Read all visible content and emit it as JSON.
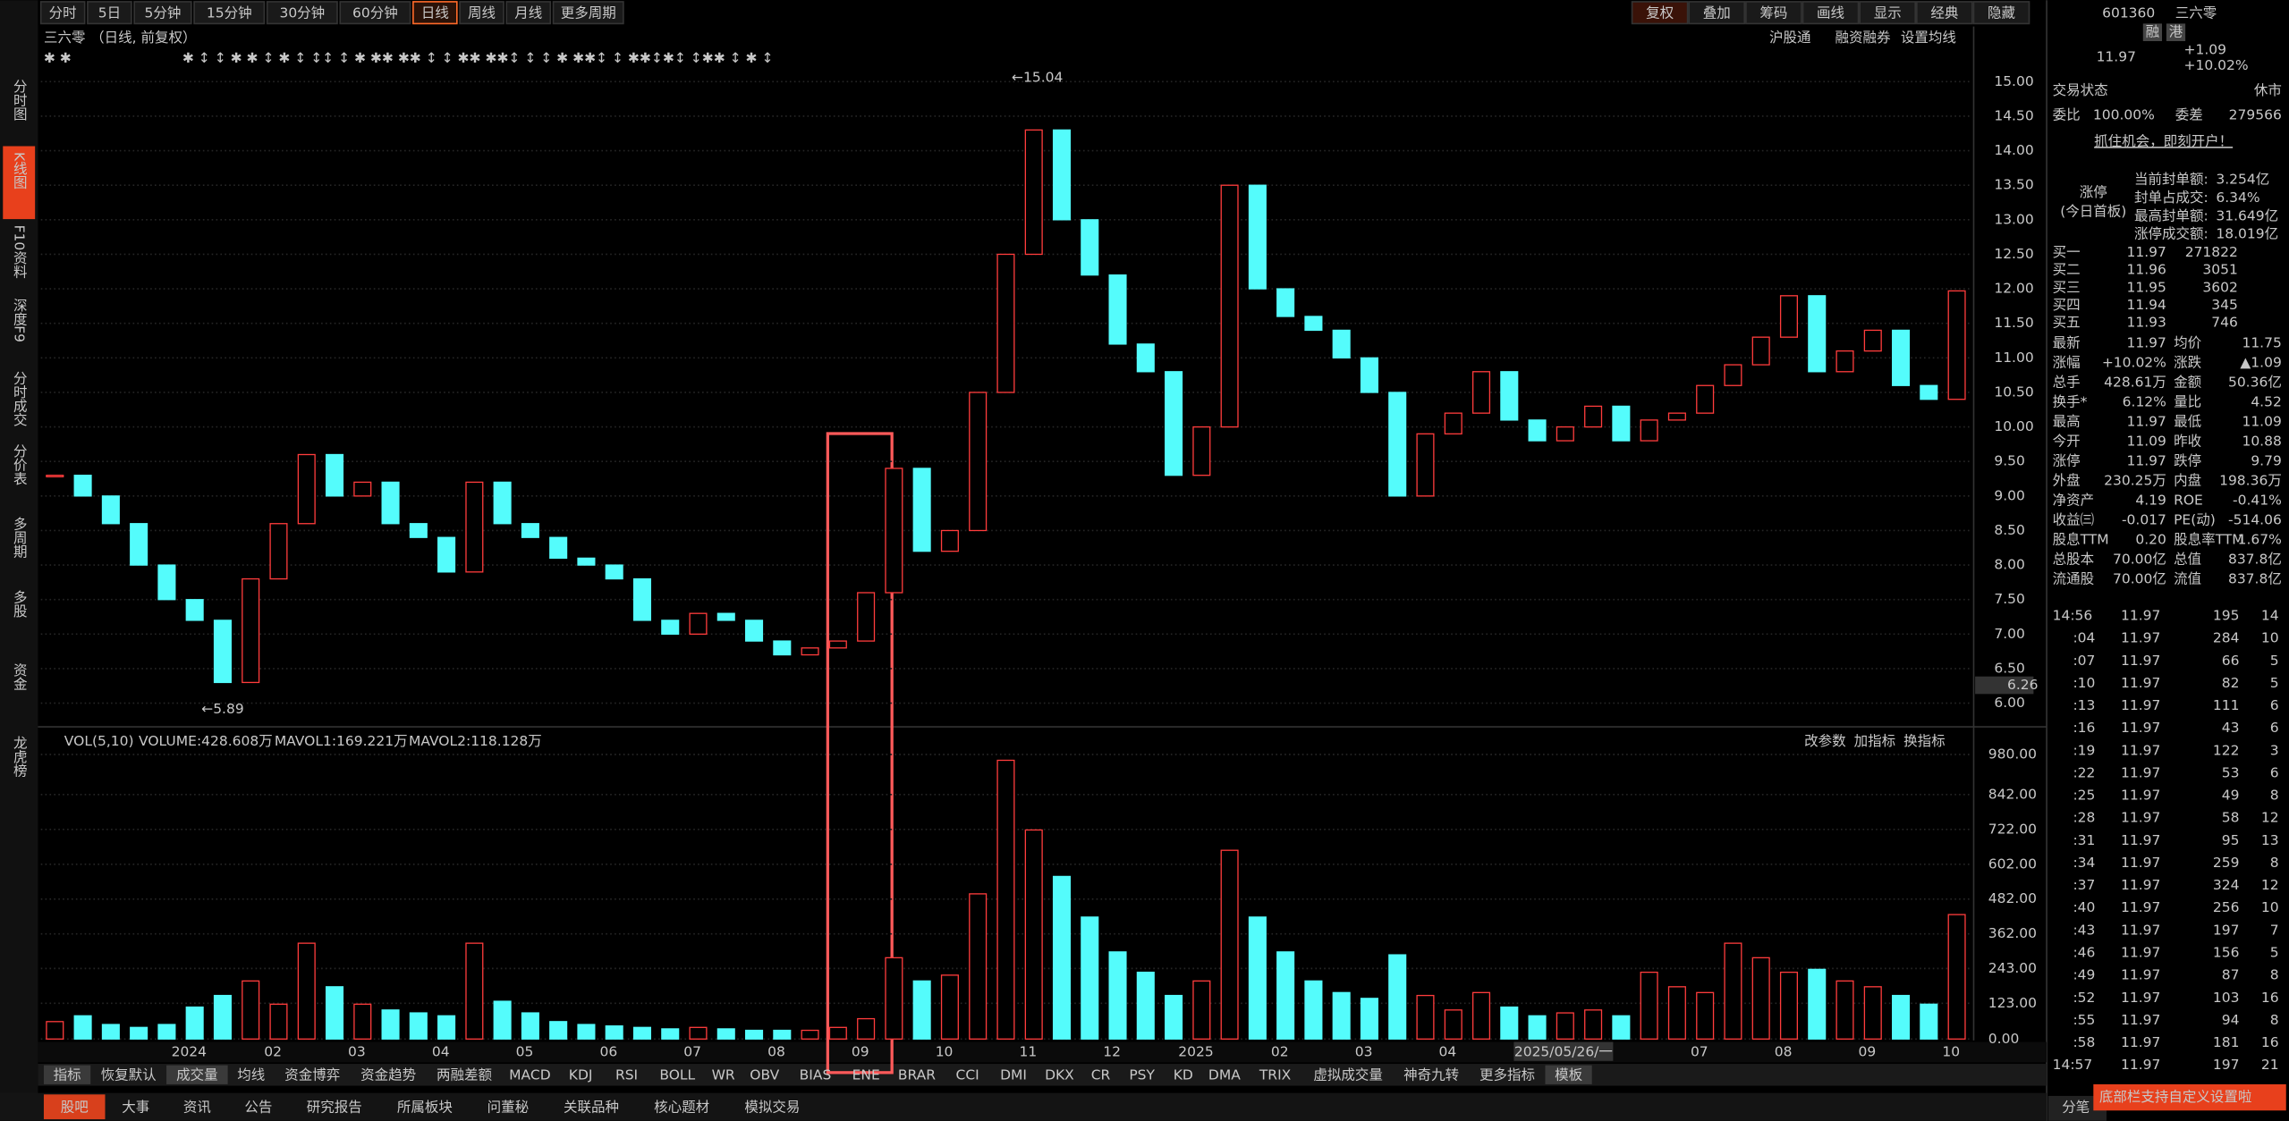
{
  "toolbar": {
    "periods": [
      "分时",
      "5日",
      "5分钟",
      "15分钟",
      "30分钟",
      "60分钟",
      "日线",
      "周线",
      "月线",
      "更多周期"
    ],
    "active": "日线",
    "tools": [
      "复权",
      "叠加",
      "筹码",
      "画线",
      "显示",
      "经典",
      "隐藏"
    ]
  },
  "sidebar": [
    "分时图",
    "K线图",
    "F10资料",
    "深度F9",
    "分时成交",
    "分价表",
    "多周期",
    "多股",
    "资金",
    "龙虎榜"
  ],
  "sidebar_active": "K线图",
  "chart_header": {
    "name": "三六零",
    "mode": "（日线, 前复权）",
    "links": [
      "沪股通",
      "融资融券",
      "设置均线"
    ]
  },
  "chart_data": {
    "type": "candlestick",
    "price_ylim": [
      5.7,
      15.46
    ],
    "price_yticks": [
      {
        "value": 6,
        "label": "6.00"
      },
      {
        "value": 6.5,
        "label": "6.50"
      },
      {
        "value": 7,
        "label": "7.00"
      },
      {
        "value": 7.5,
        "label": "7.50"
      },
      {
        "value": 8,
        "label": "8.00"
      },
      {
        "value": 8.5,
        "label": "8.50"
      },
      {
        "value": 9,
        "label": "9.00"
      },
      {
        "value": 9.5,
        "label": "9.50"
      },
      {
        "value": 10,
        "label": "10.00"
      },
      {
        "value": 10.5,
        "label": "10.50"
      },
      {
        "value": 11,
        "label": "11.00"
      },
      {
        "value": 11.5,
        "label": "11.50"
      },
      {
        "value": 12,
        "label": "12.00"
      },
      {
        "value": 12.5,
        "label": "12.50"
      },
      {
        "value": 13,
        "label": "13.00"
      },
      {
        "value": 13.5,
        "label": "13.50"
      },
      {
        "value": 14,
        "label": "14.00"
      },
      {
        "value": 14.5,
        "label": "14.50"
      },
      {
        "value": 15,
        "label": "15.00"
      }
    ],
    "cursor_price": {
      "value": 6.26,
      "label": "6.26"
    },
    "annotations": [
      "←15.04",
      "←5.89"
    ],
    "up_color": "#ff3c3c",
    "down_color": "#54fcfc",
    "months": [
      {
        "label": null,
        "closes": [
          9.3,
          9.0,
          8.6
        ],
        "volumes": [
          60,
          80,
          50
        ]
      },
      {
        "label": "2024",
        "closes": [
          8.0,
          7.5,
          7.2
        ],
        "volumes": [
          40,
          50,
          110
        ]
      },
      {
        "label": "02",
        "closes": [
          6.3,
          7.8,
          8.6
        ],
        "volumes": [
          150,
          200,
          120
        ]
      },
      {
        "label": "03",
        "closes": [
          9.6,
          9.0,
          9.2
        ],
        "volumes": [
          330,
          180,
          120
        ]
      },
      {
        "label": "04",
        "closes": [
          8.6,
          8.4,
          7.9
        ],
        "volumes": [
          100,
          90,
          80
        ]
      },
      {
        "label": "05",
        "closes": [
          9.2,
          8.6,
          8.4
        ],
        "volumes": [
          330,
          130,
          90
        ]
      },
      {
        "label": "06",
        "closes": [
          8.1,
          8.0,
          7.8
        ],
        "volumes": [
          60,
          50,
          45
        ]
      },
      {
        "label": "07",
        "closes": [
          7.2,
          7.0,
          7.3
        ],
        "volumes": [
          40,
          35,
          40
        ]
      },
      {
        "label": "08",
        "closes": [
          7.2,
          6.9,
          6.7
        ],
        "volumes": [
          35,
          30,
          30
        ]
      },
      {
        "label": "09",
        "closes": [
          6.8,
          6.9,
          7.6
        ],
        "volumes": [
          30,
          40,
          70
        ]
      },
      {
        "label": "10",
        "closes": [
          9.4,
          8.2,
          8.5
        ],
        "volumes": [
          280,
          200,
          220
        ]
      },
      {
        "label": "11",
        "closes": [
          10.5,
          12.5,
          14.3
        ],
        "volumes": [
          500,
          960,
          720
        ]
      },
      {
        "label": "12",
        "closes": [
          13.0,
          12.2,
          11.2
        ],
        "volumes": [
          560,
          420,
          300
        ]
      },
      {
        "label": "2025",
        "closes": [
          10.8,
          9.3,
          10.0
        ],
        "volumes": [
          230,
          150,
          200
        ]
      },
      {
        "label": "02",
        "closes": [
          13.5,
          12.0,
          11.6
        ],
        "volumes": [
          650,
          420,
          300
        ]
      },
      {
        "label": "03",
        "closes": [
          11.4,
          11.0,
          10.5
        ],
        "volumes": [
          200,
          160,
          140
        ]
      },
      {
        "label": "04",
        "closes": [
          9.0,
          9.9,
          10.2
        ],
        "volumes": [
          290,
          150,
          100
        ]
      },
      {
        "label": "05",
        "closes": [
          10.8,
          10.1,
          9.8
        ],
        "volumes": [
          160,
          110,
          80
        ]
      },
      {
        "label": null,
        "closes": [
          10.0,
          10.3,
          9.8
        ],
        "volumes": [
          90,
          100,
          80
        ]
      },
      {
        "label": "07",
        "closes": [
          10.1,
          10.2,
          10.6
        ],
        "volumes": [
          230,
          180,
          160
        ]
      },
      {
        "label": "08",
        "closes": [
          10.9,
          11.3,
          11.9
        ],
        "volumes": [
          330,
          280,
          230
        ]
      },
      {
        "label": "09",
        "closes": [
          10.8,
          11.1,
          11.4
        ],
        "volumes": [
          240,
          200,
          180
        ]
      },
      {
        "label": "10",
        "closes": [
          10.6,
          10.4,
          11.97
        ],
        "volumes": [
          150,
          120,
          428.608
        ]
      }
    ],
    "cursor_date": "2025/05/26/一",
    "vol_ylim": [
      0,
      1015
    ],
    "vol_yticks": [
      {
        "value": 0,
        "label": "0.00"
      },
      {
        "value": 123,
        "label": "123.00"
      },
      {
        "value": 243,
        "label": "243.00"
      },
      {
        "value": 362,
        "label": "362.00"
      },
      {
        "value": 482,
        "label": "482.00"
      },
      {
        "value": 602,
        "label": "602.00"
      },
      {
        "value": 722,
        "label": "722.00"
      },
      {
        "value": 842,
        "label": "842.00"
      },
      {
        "value": 980,
        "label": "980.00"
      }
    ],
    "vol_header": [
      "VOL(5,10)",
      "VOLUME:428.608万",
      "MAVOL1:169.221万",
      "MAVOL2:118.128万"
    ],
    "vol_buttons": [
      "改参数",
      "加指标",
      "换指标"
    ]
  },
  "indicators": [
    "指标",
    "恢复默认",
    "成交量",
    "均线",
    "资金博弈",
    "资金趋势",
    "两融差额",
    "MACD",
    "KDJ",
    "RSI",
    "BOLL",
    "WR",
    "OBV",
    "BIAS",
    "ENE",
    "BRAR",
    "CCI",
    "DMI",
    "DKX",
    "CR",
    "PSY",
    "KD",
    "DMA",
    "TRIX",
    "虚拟成交量",
    "神奇九转",
    "更多指标",
    "模板"
  ],
  "bottom_tabs": [
    "股吧",
    "大事",
    "资讯",
    "公告",
    "研究报告",
    "所属板块",
    "问董秘",
    "关联品种",
    "核心题材",
    "模拟交易"
  ],
  "quote": {
    "code": "601360",
    "name": "三六零",
    "tags": [
      "融",
      "港"
    ],
    "price": "11.97",
    "change": "+1.09",
    "pct": "+10.02%",
    "status": [
      "交易状态",
      "休市"
    ],
    "ratio": [
      "委比",
      "100.00%",
      "委差",
      "279566"
    ],
    "promo": "抓住机会，即刻开户！",
    "limit_title": "涨停",
    "limit_sub": "(今日首板)",
    "limit_rows": [
      [
        "当前封单额:",
        "3.254亿"
      ],
      [
        "封单占成交:",
        "6.34%"
      ],
      [
        "最高封单额:",
        "31.649亿"
      ],
      [
        "涨停成交额:",
        "18.019亿"
      ]
    ],
    "book": [
      [
        "买一",
        "11.97",
        "271822"
      ],
      [
        "买二",
        "11.96",
        "3051"
      ],
      [
        "买三",
        "11.95",
        "3602"
      ],
      [
        "买四",
        "11.94",
        "345"
      ],
      [
        "买五",
        "11.93",
        "746"
      ]
    ],
    "stats": [
      [
        "最新",
        "11.97",
        "均价",
        "11.75"
      ],
      [
        "涨幅",
        "+10.02%",
        "涨跌",
        "▲1.09"
      ],
      [
        "总手",
        "428.61万",
        "金额",
        "50.36亿"
      ],
      [
        "换手*",
        "6.12%",
        "量比",
        "4.52"
      ],
      [
        "最高",
        "11.97",
        "最低",
        "11.09"
      ],
      [
        "今开",
        "11.09",
        "昨收",
        "10.88"
      ],
      [
        "涨停",
        "11.97",
        "跌停",
        "9.79"
      ],
      [
        "外盘",
        "230.25万",
        "内盘",
        "198.36万"
      ],
      [
        "净资产",
        "4.19",
        "ROE",
        "-0.41%"
      ],
      [
        "收益㈢",
        "-0.017",
        "PE(动)",
        "-514.06"
      ],
      [
        "股息TTM",
        "0.20",
        "股息率TTM",
        "1.67%"
      ],
      [
        "总股本",
        "70.00亿",
        "总值",
        "837.8亿"
      ],
      [
        "流通股",
        "70.00亿",
        "流值",
        "837.8亿"
      ]
    ],
    "trades": [
      [
        "14:56",
        "11.97",
        "195",
        "14"
      ],
      [
        ":04",
        "11.97",
        "284",
        "10"
      ],
      [
        ":07",
        "11.97",
        "66",
        "5"
      ],
      [
        ":10",
        "11.97",
        "82",
        "5"
      ],
      [
        ":13",
        "11.97",
        "111",
        "6"
      ],
      [
        ":16",
        "11.97",
        "43",
        "6"
      ],
      [
        ":19",
        "11.97",
        "122",
        "3"
      ],
      [
        ":22",
        "11.97",
        "53",
        "6"
      ],
      [
        ":25",
        "11.97",
        "49",
        "8"
      ],
      [
        ":28",
        "11.97",
        "58",
        "12"
      ],
      [
        ":31",
        "11.97",
        "95",
        "13"
      ],
      [
        ":34",
        "11.97",
        "259",
        "8"
      ],
      [
        ":37",
        "11.97",
        "324",
        "12"
      ],
      [
        ":40",
        "11.97",
        "256",
        "10"
      ],
      [
        ":43",
        "11.97",
        "197",
        "7"
      ],
      [
        ":46",
        "11.97",
        "156",
        "5"
      ],
      [
        ":49",
        "11.97",
        "87",
        "8"
      ],
      [
        ":52",
        "11.97",
        "103",
        "16"
      ],
      [
        ":55",
        "11.97",
        "94",
        "8"
      ],
      [
        ":58",
        "11.97",
        "181",
        "16"
      ],
      [
        "14:57",
        "11.97",
        "197",
        "21"
      ]
    ],
    "trade_tab": "分笔",
    "popup": "底部栏支持自定义设置啦"
  }
}
